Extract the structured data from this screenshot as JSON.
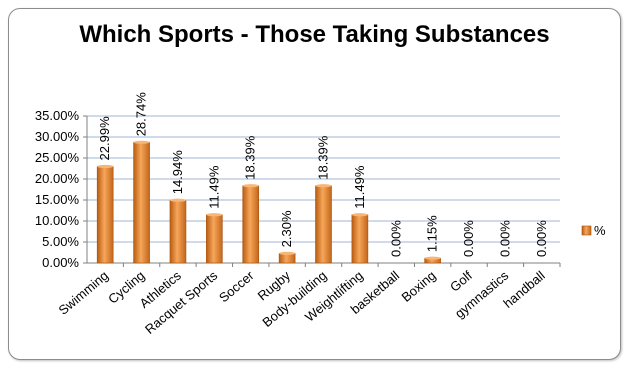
{
  "chart_data": {
    "type": "bar",
    "title": "Which Sports - Those Taking Substances",
    "xlabel": "",
    "ylabel": "",
    "categories": [
      "Swimming",
      "Cycling",
      "Athletics",
      "Racquet Sports",
      "Soccer",
      "Rugby",
      "Body-building",
      "Weightlifting",
      "basketball",
      "Boxing",
      "Golf",
      "gymnastics",
      "handball"
    ],
    "series": [
      {
        "name": "%",
        "values": [
          22.99,
          28.74,
          14.94,
          11.49,
          18.39,
          2.3,
          18.39,
          11.49,
          0.0,
          1.15,
          0.0,
          0.0,
          0.0
        ],
        "labels": [
          "22.99%",
          "28.74%",
          "14.94%",
          "11.49%",
          "18.39%",
          "2.30%",
          "18.39%",
          "11.49%",
          "0.00%",
          "1.15%",
          "0.00%",
          "0.00%",
          "0.00%"
        ]
      }
    ],
    "ylim": [
      0,
      35
    ],
    "yticks": [
      "0.00%",
      "5.00%",
      "10.00%",
      "15.00%",
      "20.00%",
      "25.00%",
      "30.00%",
      "35.00%"
    ],
    "grid": true,
    "legend": "right",
    "bar_color": "#e8822a"
  }
}
